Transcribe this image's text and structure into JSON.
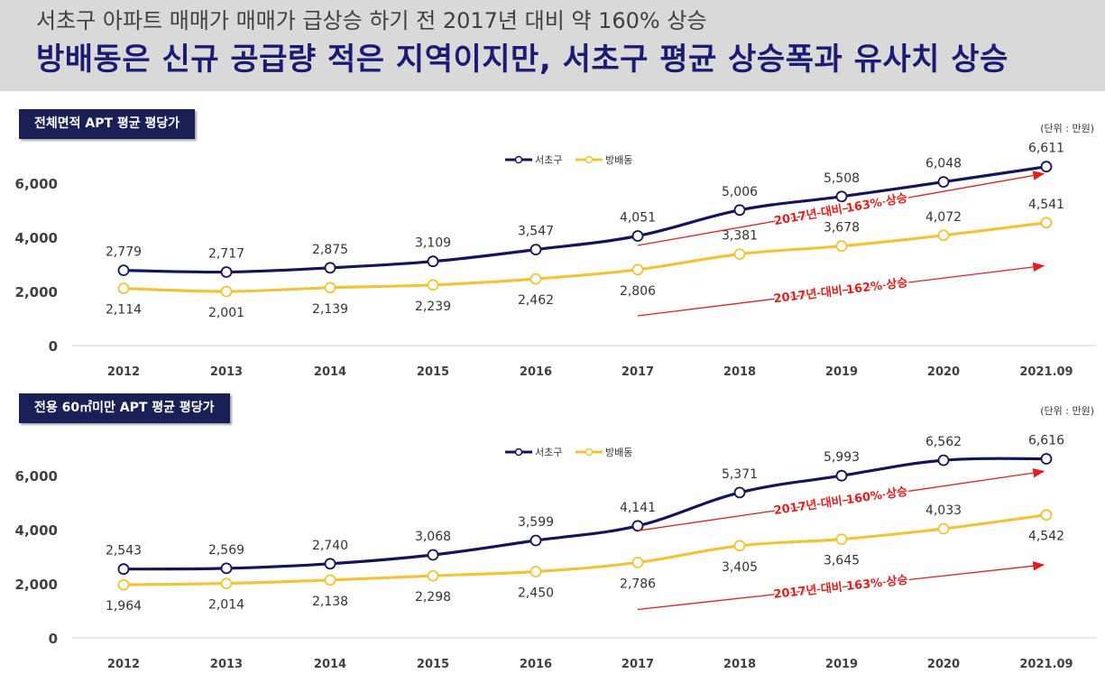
{
  "header": {
    "subtitle": "서초구 아파트 매매가 매매가 급상승 하기 전 2017년 대비 약 160% 상승",
    "title": "방배동은 신규 공급량 적은 지역이지만, 서초구 평균 상승폭과 유사치 상승"
  },
  "colors": {
    "seocho": "#14145a",
    "bangbae": "#f0c43a",
    "arrow": "#e41e1e",
    "header_bg": "#d9d9d9"
  },
  "chart_data": [
    {
      "type": "line",
      "title": "전체면적 APT 평균 평당가",
      "unit": "(단위 : 만원)",
      "categories": [
        "2012",
        "2013",
        "2014",
        "2015",
        "2016",
        "2017",
        "2018",
        "2019",
        "2020",
        "2021.09"
      ],
      "yticks": [
        "0",
        "2,000",
        "4,000",
        "6,000"
      ],
      "ylim": [
        0,
        6000
      ],
      "series": [
        {
          "name": "서초구",
          "values": [
            2779,
            2717,
            2875,
            3109,
            3547,
            4051,
            5006,
            5508,
            6048,
            6611
          ],
          "labels": [
            "2,779",
            "2,717",
            "2,875",
            "3,109",
            "3,547",
            "4,051",
            "5,006",
            "5,508",
            "6,048",
            "6,611"
          ]
        },
        {
          "name": "방배동",
          "values": [
            2114,
            2001,
            2139,
            2239,
            2462,
            2806,
            3381,
            3678,
            4072,
            4541
          ],
          "labels": [
            "2,114",
            "2,001",
            "2,139",
            "2,239",
            "2,462",
            "2,806",
            "3,381",
            "3,678",
            "4,072",
            "4,541"
          ]
        }
      ],
      "annotations": [
        "2017년 대비 163% 상승",
        "2017년 대비 162% 상승"
      ],
      "grid": false,
      "legend": "top-center"
    },
    {
      "type": "line",
      "title": "전용 60㎡미만  APT 평균 평당가",
      "unit": "(단위 : 만원)",
      "categories": [
        "2012",
        "2013",
        "2014",
        "2015",
        "2016",
        "2017",
        "2018",
        "2019",
        "2020",
        "2021.09"
      ],
      "yticks": [
        "0",
        "2,000",
        "4,000",
        "6,000"
      ],
      "ylim": [
        0,
        6000
      ],
      "series": [
        {
          "name": "서초구",
          "values": [
            2543,
            2569,
            2740,
            3068,
            3599,
            4141,
            5371,
            5993,
            6562,
            6616
          ],
          "labels": [
            "2,543",
            "2,569",
            "2,740",
            "3,068",
            "3,599",
            "4,141",
            "5,371",
            "5,993",
            "6,562",
            "6,616"
          ]
        },
        {
          "name": "방배동",
          "values": [
            1964,
            2014,
            2138,
            2298,
            2450,
            2786,
            3405,
            3645,
            4033,
            4542
          ],
          "labels": [
            "1,964",
            "2,014",
            "2,138",
            "2,298",
            "2,450",
            "2,786",
            "3,405",
            "3,645",
            "4,033",
            "4,542"
          ]
        }
      ],
      "annotations": [
        "2017년 대비 160% 상승",
        "2017년 대비 163% 상승"
      ],
      "grid": false,
      "legend": "top-center"
    }
  ]
}
